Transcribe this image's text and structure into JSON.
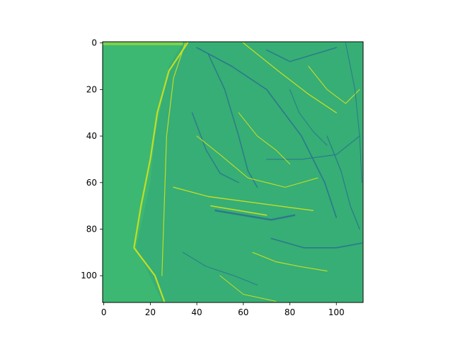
{
  "chart_data": {
    "type": "heatmap",
    "title": "",
    "xlabel": "",
    "ylabel": "",
    "image_size": [
      112,
      112
    ],
    "xlim": [
      -0.5,
      111.5
    ],
    "ylim": [
      111.5,
      -0.5
    ],
    "x_ticks": [
      0,
      20,
      40,
      60,
      80,
      100
    ],
    "x_tick_labels": [
      "0",
      "20",
      "40",
      "60",
      "80",
      "100"
    ],
    "y_ticks": [
      0,
      20,
      40,
      60,
      80,
      100
    ],
    "y_tick_labels": [
      "0",
      "20",
      "40",
      "60",
      "80",
      "100"
    ],
    "colormap": "viridis",
    "background_color": "#3cb872",
    "edge_colors": {
      "bright": "#d2e21b",
      "dark": "#2c728e"
    },
    "grid": false,
    "legend": "none"
  }
}
